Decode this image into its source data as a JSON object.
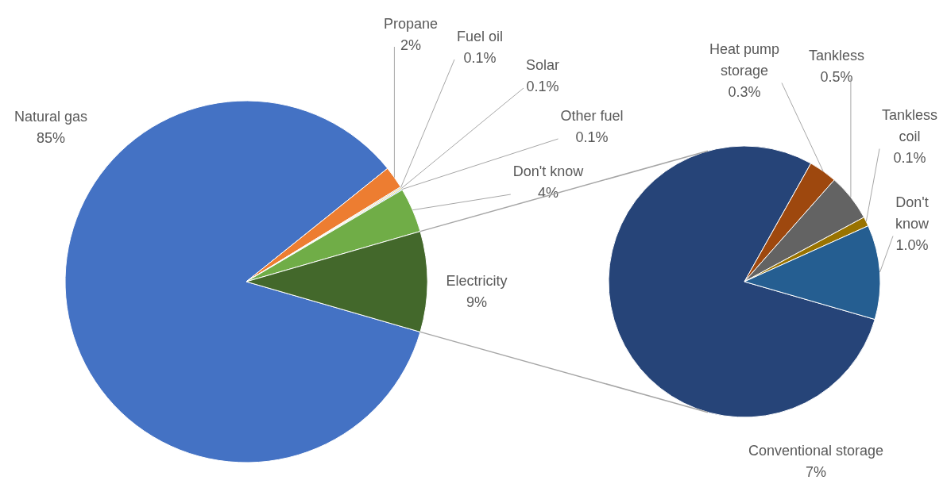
{
  "chart_data": [
    {
      "type": "pie",
      "categories": [
        "Natural gas",
        "Propane",
        "Fuel oil",
        "Solar",
        "Other fuel",
        "Don't know",
        "Electricity"
      ],
      "values": [
        85,
        2,
        0.1,
        0.1,
        0.1,
        4,
        9
      ],
      "colors": [
        "#4472c4",
        "#ed7d31",
        "#a5a5a5",
        "#ffc000",
        "#5b9bd5",
        "#70ad47",
        "#43682b"
      ],
      "value_labels": [
        "85%",
        "2%",
        "0.1%",
        "0.1%",
        "0.1%",
        "4%",
        "9%"
      ]
    },
    {
      "type": "pie",
      "categories": [
        "Conventional storage",
        "Heat pump storage",
        "Tankless",
        "Tankless coil",
        "Don't know"
      ],
      "values": [
        7,
        0.3,
        0.5,
        0.1,
        1.0
      ],
      "colors": [
        "#264478",
        "#9e480e",
        "#636363",
        "#997300",
        "#255e91"
      ],
      "value_labels": [
        "7%",
        "0.3%",
        "0.5%",
        "0.1%",
        "1.0%"
      ]
    }
  ]
}
